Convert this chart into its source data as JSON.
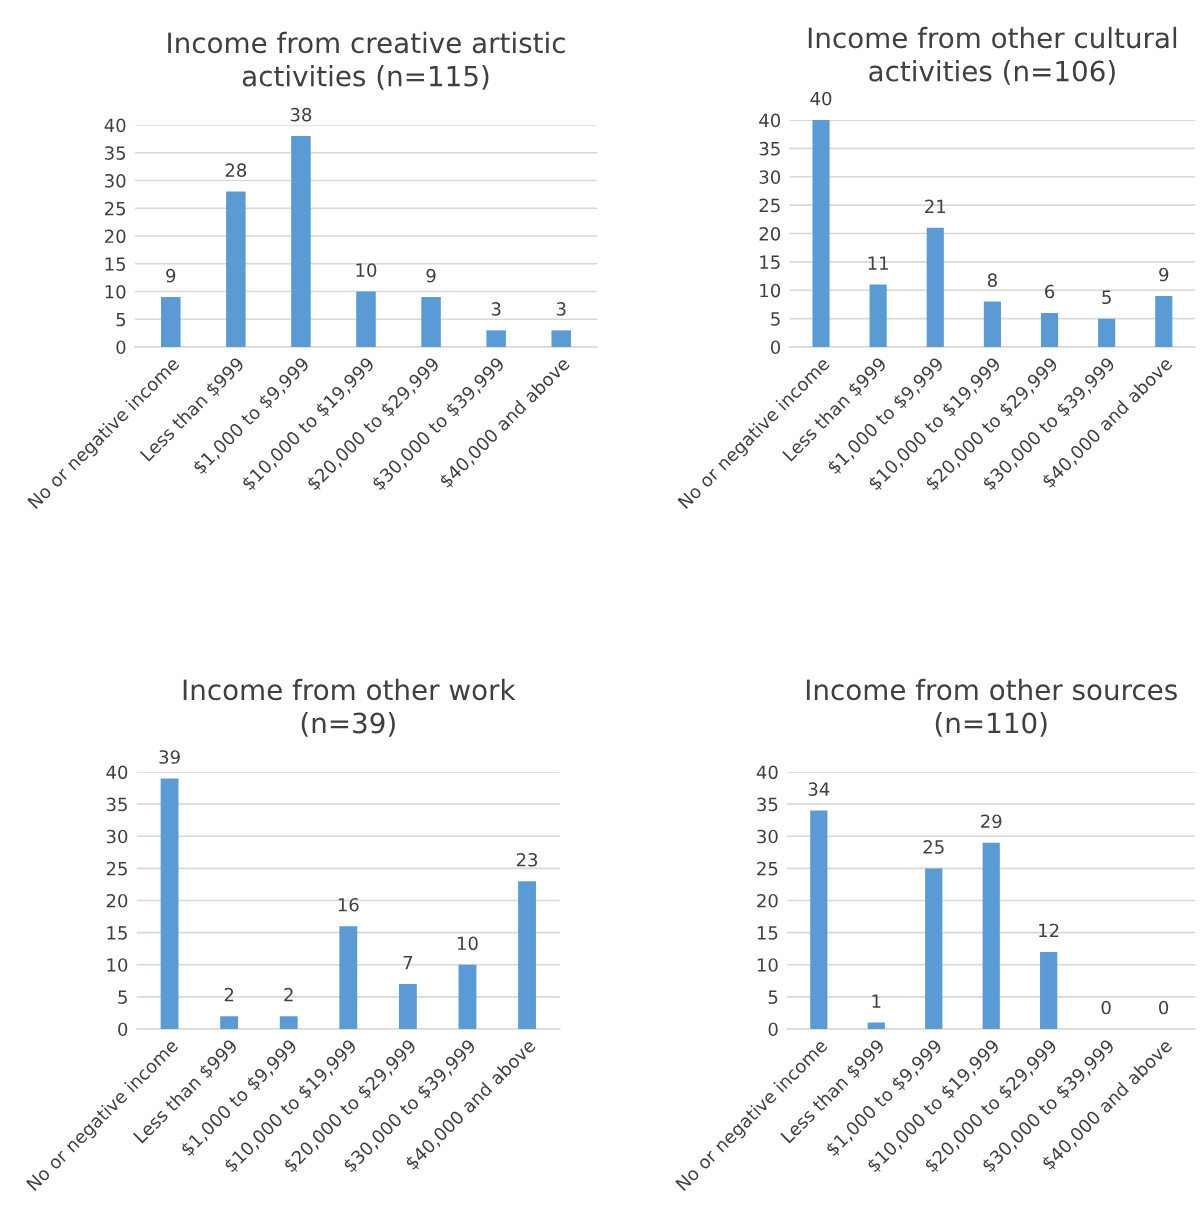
{
  "chart_data": [
    {
      "type": "bar",
      "title": "Income from creative artistic\nactivities (n=115)",
      "categories": [
        "No or negative income",
        "Less than $999",
        "$1,000 to $9,999",
        "$10,000 to $19,999",
        "$20,000 to $29,999",
        "$30,000 to $39,999",
        "$40,000 and above"
      ],
      "values": [
        9,
        28,
        38,
        10,
        9,
        3,
        3
      ],
      "color": "#5b9bd5",
      "ylim": [
        0,
        40
      ],
      "yticks": [
        0,
        5,
        10,
        15,
        20,
        25,
        30,
        35,
        40
      ],
      "grid": "y",
      "data_labels": true,
      "legend": false
    },
    {
      "type": "bar",
      "title": "Income from other cultural\nactivities (n=106)",
      "categories": [
        "No or negative income",
        "Less than $999",
        "$1,000 to $9,999",
        "$10,000 to $19,999",
        "$20,000 to $29,999",
        "$30,000 to $39,999",
        "$40,000 and above"
      ],
      "values": [
        40,
        11,
        21,
        8,
        6,
        5,
        9
      ],
      "color": "#5b9bd5",
      "ylim": [
        0,
        40
      ],
      "yticks": [
        0,
        5,
        10,
        15,
        20,
        25,
        30,
        35,
        40
      ],
      "grid": "y",
      "data_labels": true,
      "legend": false
    },
    {
      "type": "bar",
      "title": "Income from other work\n(n=39)",
      "categories": [
        "No or negative income",
        "Less than $999",
        "$1,000 to $9,999",
        "$10,000 to $19,999",
        "$20,000 to $29,999",
        "$30,000 to $39,999",
        "$40,000 and above"
      ],
      "values": [
        39,
        2,
        2,
        16,
        7,
        10,
        23
      ],
      "color": "#5b9bd5",
      "ylim": [
        0,
        40
      ],
      "yticks": [
        0,
        5,
        10,
        15,
        20,
        25,
        30,
        35,
        40
      ],
      "grid": "y",
      "data_labels": true,
      "legend": false
    },
    {
      "type": "bar",
      "title": "Income from other sources\n(n=110)",
      "categories": [
        "No or negative income",
        "Less than $999",
        "$1,000 to $9,999",
        "$10,000 to $19,999",
        "$20,000 to $29,999",
        "$30,000 to $39,999",
        "$40,000 and above"
      ],
      "values": [
        34,
        1,
        25,
        29,
        12,
        0,
        0
      ],
      "color": "#5b9bd5",
      "ylim": [
        0,
        40
      ],
      "yticks": [
        0,
        5,
        10,
        15,
        20,
        25,
        30,
        35,
        40
      ],
      "grid": "y",
      "data_labels": true,
      "legend": false
    }
  ]
}
